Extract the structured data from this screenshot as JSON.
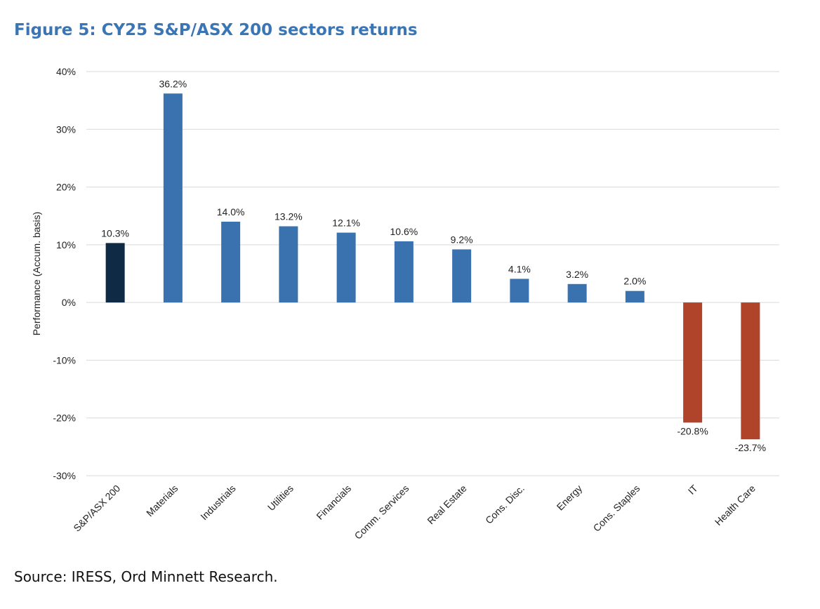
{
  "title": "Figure 5: CY25 S&P/ASX 200 sectors returns",
  "source": "Source: IRESS, Ord Minnett Research.",
  "colors": {
    "benchmark": "#0f2a44",
    "positive": "#3a72b0",
    "negative": "#b0442a"
  },
  "chart_data": {
    "type": "bar",
    "title": "Figure 5: CY25 S&P/ASX 200 sectors returns",
    "xlabel": "",
    "ylabel": "Performance (Accum. basis)",
    "ylim": [
      -30,
      40
    ],
    "yticks": [
      40,
      30,
      20,
      10,
      0,
      -10,
      -20,
      -30
    ],
    "ytick_labels": [
      "40%",
      "30%",
      "20%",
      "10%",
      "0%",
      "-10%",
      "-20%",
      "-30%"
    ],
    "grid": true,
    "categories": [
      "S&P/ASX 200",
      "Materials",
      "Industrials",
      "Utilities",
      "Financials",
      "Comm. Services",
      "Real Estate",
      "Cons. Disc.",
      "Energy",
      "Cons. Staples",
      "IT",
      "Health Care"
    ],
    "values": [
      10.3,
      36.2,
      14.0,
      13.2,
      12.1,
      10.6,
      9.2,
      4.1,
      3.2,
      2.0,
      -20.8,
      -23.7
    ],
    "data_labels": [
      "10.3%",
      "36.2%",
      "14.0%",
      "13.2%",
      "12.1%",
      "10.6%",
      "9.2%",
      "4.1%",
      "3.2%",
      "2.0%",
      "-20.8%",
      "-23.7%"
    ],
    "bar_color_roles": [
      "benchmark",
      "positive",
      "positive",
      "positive",
      "positive",
      "positive",
      "positive",
      "positive",
      "positive",
      "positive",
      "negative",
      "negative"
    ]
  }
}
